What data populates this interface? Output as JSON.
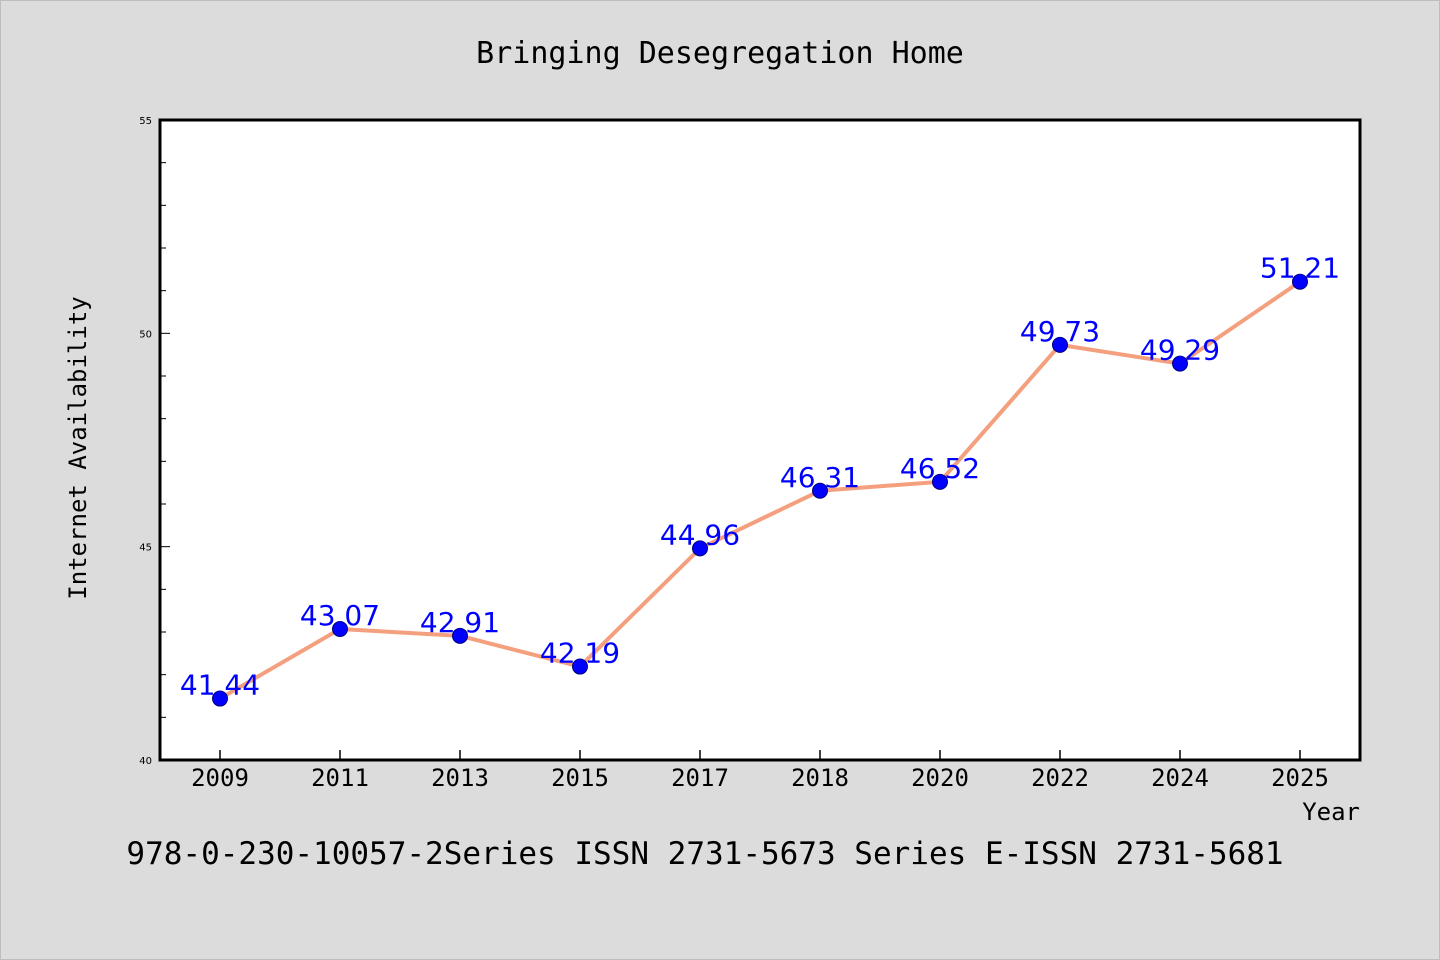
{
  "chart_data": {
    "type": "line",
    "title": "Bringing Desegregation Home",
    "xlabel": "Year",
    "ylabel": "Internet Availability",
    "categories": [
      "2009",
      "2011",
      "2013",
      "2015",
      "2017",
      "2018",
      "2020",
      "2022",
      "2024",
      "2025"
    ],
    "series": [
      {
        "values": [
          41.44,
          43.07,
          42.91,
          42.19,
          44.96,
          46.31,
          46.52,
          49.73,
          49.29,
          51.21
        ]
      }
    ],
    "data_labels": [
      "41.44",
      "43.07",
      "42.91",
      "42.19",
      "44.96",
      "46.31",
      "46.52",
      "49.73",
      "49.29",
      "51.21"
    ],
    "ylim": [
      40,
      55
    ],
    "y_ticks": [
      "40",
      "45",
      "50",
      "55"
    ],
    "grid": false,
    "legend": "none",
    "footer": "978-0-230-10057-2Series ISSN 2731-5673 Series E-ISSN 2731-5681",
    "colors": {
      "background": "#dcdcdc",
      "plot_background": "#ffffff",
      "line": "#f4a07e",
      "marker": "#0000ff",
      "label": "#0000ff",
      "text": "#000000"
    }
  }
}
